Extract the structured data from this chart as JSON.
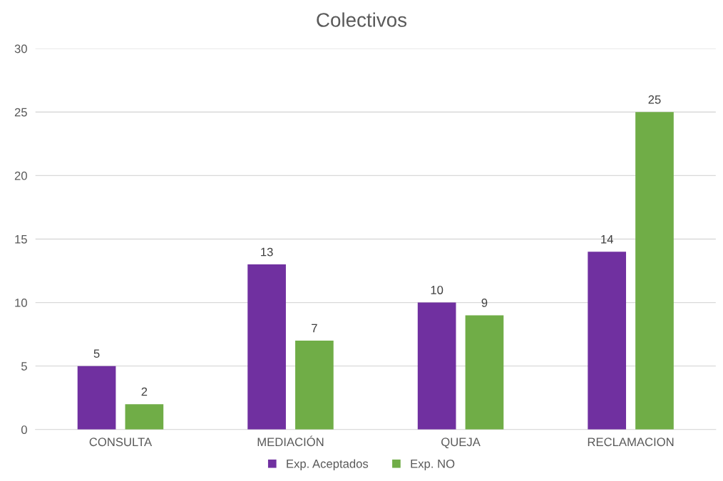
{
  "chart_data": {
    "type": "bar",
    "title": "Colectivos",
    "categories": [
      "CONSULTA",
      "MEDIACIÓN",
      "QUEJA",
      "RECLAMACION"
    ],
    "series": [
      {
        "name": "Exp. Aceptados",
        "color": "#7030a0",
        "values": [
          5,
          13,
          10,
          14
        ]
      },
      {
        "name": "Exp. NO",
        "color": "#70ad47",
        "values": [
          2,
          7,
          9,
          25
        ]
      }
    ],
    "ylim": [
      0,
      30
    ],
    "yticks": [
      0,
      5,
      10,
      15,
      20,
      25,
      30
    ],
    "grid": "y",
    "legend": "bottom",
    "data_labels": true
  }
}
